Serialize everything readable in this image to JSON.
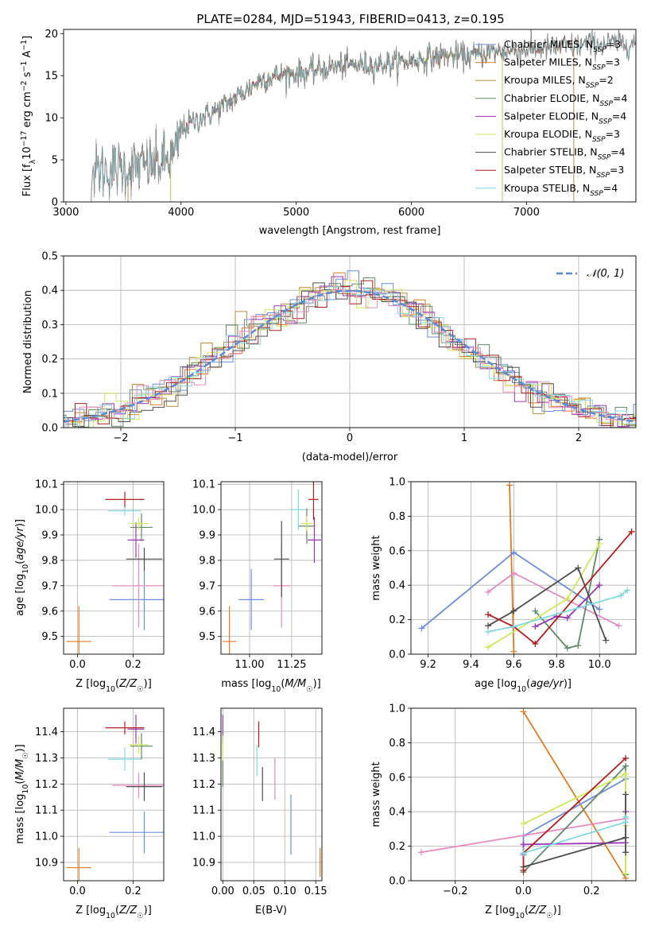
{
  "figure": {
    "title": "PLATE=0284, MJD=51943, FIBERID=0413, z=0.195"
  },
  "colors": {
    "c_chabrier_miles": "#6a8fdc",
    "c_salpeter_miles": "#e07a22",
    "c_kroupa_miles": "#b68d3a",
    "c_chabrier_elodie": "#5e8a66",
    "c_salpeter_elodie": "#9a35b5",
    "c_kroupa_elodie": "#cfe85a",
    "c_chabrier_stelib": "#4d4d4d",
    "c_salpeter_stelib": "#b01e1e",
    "c_kroupa_stelib": "#7fd9e0",
    "c_pink": "#e68bbf",
    "grid": "#b0b0b0"
  },
  "chart_data": [
    {
      "id": "spectrum",
      "type": "line",
      "title": "PLATE=0284, MJD=51943, FIBERID=0413, z=0.195",
      "xlabel": "wavelength [Angstrom, rest frame]",
      "ylabel": "Flux [f_λ10^-17 erg cm^-2 s^-1 A^-1]",
      "xlim": [
        2980,
        7950
      ],
      "ylim": [
        0,
        20.5
      ],
      "xticks": [
        "3000",
        "4000",
        "5000",
        "6000",
        "7000"
      ],
      "yticks": [
        "0",
        "5",
        "10",
        "15",
        "20"
      ],
      "grid": false,
      "legend_position": "right",
      "series": [
        {
          "name": "Chabrier MILES, N_SSP=3",
          "x_range": [
            3540,
            7410
          ]
        },
        {
          "name": "Salpeter MILES, N_SSP=3",
          "x_range": [
            3540,
            7410
          ]
        },
        {
          "name": "Kroupa MILES, N_SSP=2",
          "x_range": [
            3540,
            7410
          ]
        },
        {
          "name": "Chabrier ELODIE, N_SSP=4",
          "x_range": [
            3910,
            6790
          ]
        },
        {
          "name": "Salpeter ELODIE, N_SSP=4",
          "x_range": [
            3910,
            6790
          ]
        },
        {
          "name": "Kroupa ELODIE, N_SSP=3",
          "x_range": [
            3910,
            6790
          ]
        },
        {
          "name": "Chabrier STELIB, N_SSP=4",
          "x_range": [
            3220,
            7950
          ]
        },
        {
          "name": "Salpeter STELIB, N_SSP=3",
          "x_range": [
            3220,
            7950
          ]
        },
        {
          "name": "Kroupa STELIB, N_SSP=4",
          "x_range": [
            3220,
            7950
          ]
        }
      ],
      "continuum": {
        "x": [
          3220,
          3400,
          3550,
          3700,
          3850,
          3950,
          4000,
          4100,
          4300,
          4500,
          4700,
          4900,
          5100,
          5300,
          5500,
          5700,
          5900,
          6100,
          6300,
          6500,
          6700,
          6900,
          7100,
          7300,
          7500,
          7700,
          7950
        ],
        "y": [
          3.6,
          3.9,
          4.1,
          4.3,
          4.7,
          5.5,
          8.6,
          9.5,
          10.8,
          12.6,
          14.6,
          15.2,
          15.4,
          16.0,
          16.3,
          16.3,
          16.6,
          17.0,
          17.4,
          17.3,
          17.8,
          18.0,
          18.2,
          18.4,
          18.7,
          18.8,
          18.9
        ]
      }
    },
    {
      "id": "residuals",
      "type": "histogram",
      "xlabel": "(data-model)/error",
      "ylabel": "Normed distribution",
      "xlim": [
        -2.5,
        2.5
      ],
      "ylim": [
        0,
        0.5
      ],
      "xticks": [
        "−2",
        "−1",
        "0",
        "1",
        "2"
      ],
      "yticks": [
        "0.0",
        "0.1",
        "0.2",
        "0.3",
        "0.4",
        "0.5"
      ],
      "grid": true,
      "legend_position": "top-right",
      "reference_curve": {
        "name": "𝒩(0, 1)",
        "style": "dashed"
      },
      "bin_width": 0.1
    },
    {
      "id": "age_vs_Z",
      "type": "scatter",
      "xlabel": "Z [log10(Z/Z☉)]",
      "ylabel": "age  [log10(age/yr)]",
      "xlim": [
        -0.05,
        0.31
      ],
      "ylim": [
        9.43,
        10.11
      ],
      "xticks": [
        "0.0",
        "0.2"
      ],
      "yticks": [
        "9.5",
        "9.6",
        "9.7",
        "9.8",
        "9.9",
        "10.0",
        "10.1"
      ],
      "grid": true,
      "points": [
        {
          "color": "c_salpeter_miles",
          "x": 0.005,
          "y": 9.48,
          "xerr": 0.045,
          "yerr": 0.14
        },
        {
          "color": "c_chabrier_miles",
          "x": 0.24,
          "y": 9.645,
          "xerr": 0.125,
          "yerr": 0.12
        },
        {
          "color": "c_pink",
          "x": 0.22,
          "y": 9.7,
          "xerr": 0.095,
          "yerr": 0.165
        },
        {
          "color": "c_chabrier_stelib",
          "x": 0.24,
          "y": 9.805,
          "xerr": 0.065,
          "yerr": 0.045
        },
        {
          "color": "c_salpeter_elodie",
          "x": 0.21,
          "y": 9.88,
          "xerr": 0.03,
          "yerr": 0.07
        },
        {
          "color": "c_chabrier_elodie",
          "x": 0.23,
          "y": 9.93,
          "xerr": 0.04,
          "yerr": 0.055
        },
        {
          "color": "c_kroupa_elodie",
          "x": 0.22,
          "y": 9.945,
          "xerr": 0.035,
          "yerr": 0.025
        },
        {
          "color": "c_kroupa_stelib",
          "x": 0.17,
          "y": 9.995,
          "xerr": 0.06,
          "yerr": 0.02
        },
        {
          "color": "c_salpeter_stelib",
          "x": 0.17,
          "y": 10.04,
          "xerr": 0.07,
          "yerr": 0.03
        }
      ]
    },
    {
      "id": "age_vs_mass",
      "type": "scatter",
      "xlabel": "mass [log10(M/M☉)]",
      "ylabel": "",
      "xlim": [
        10.83,
        11.43
      ],
      "ylim": [
        9.43,
        10.11
      ],
      "xticks": [
        "11.00",
        "11.25"
      ],
      "yticks": [
        "9.5",
        "9.6",
        "9.7",
        "9.8",
        "9.9",
        "10.0",
        "10.1"
      ],
      "grid": true,
      "points": [
        {
          "color": "c_salpeter_miles",
          "x": 10.88,
          "y": 9.48,
          "xerr": 0.04,
          "yerr": 0.14
        },
        {
          "color": "c_chabrier_miles",
          "x": 11.01,
          "y": 9.645,
          "xerr": 0.075,
          "yerr": 0.12
        },
        {
          "color": "c_pink",
          "x": 11.19,
          "y": 9.7,
          "xerr": 0.05,
          "yerr": 0.165
        },
        {
          "color": "c_chabrier_stelib",
          "x": 11.19,
          "y": 9.805,
          "xerr": 0.045,
          "yerr": 0.15
        },
        {
          "color": "c_salpeter_elodie",
          "x": 11.385,
          "y": 9.88,
          "xerr": 0.04,
          "yerr": 0.09
        },
        {
          "color": "c_chabrier_elodie",
          "x": 11.34,
          "y": 9.935,
          "xerr": 0.05,
          "yerr": 0.07
        },
        {
          "color": "c_kroupa_elodie",
          "x": 11.34,
          "y": 9.945,
          "xerr": 0.035,
          "yerr": 0.03
        },
        {
          "color": "c_kroupa_stelib",
          "x": 11.29,
          "y": 10.0,
          "xerr": 0.045,
          "yerr": 0.08
        },
        {
          "color": "c_salpeter_stelib",
          "x": 11.38,
          "y": 10.04,
          "xerr": 0.03,
          "yerr": 0.08
        }
      ]
    },
    {
      "id": "weight_vs_age",
      "type": "line",
      "xlabel": "age  [log10(age/yr)]",
      "ylabel": "mass weight",
      "xlim": [
        9.12,
        10.17
      ],
      "ylim": [
        0,
        1.0
      ],
      "xticks": [
        "9.2",
        "9.4",
        "9.6",
        "9.8",
        "10.0"
      ],
      "yticks": [
        "0.0",
        "0.2",
        "0.4",
        "0.6",
        "0.8",
        "1.0"
      ],
      "grid": true,
      "series": [
        {
          "color": "c_salpeter_miles",
          "x": [
            9.58,
            9.6
          ],
          "y": [
            0.98,
            0.015
          ]
        },
        {
          "color": "c_chabrier_miles",
          "x": [
            9.17,
            9.6,
            10.0
          ],
          "y": [
            0.15,
            0.59,
            0.26
          ]
        },
        {
          "color": "c_pink",
          "x": [
            9.48,
            9.6,
            10.09
          ],
          "y": [
            0.36,
            0.47,
            0.165
          ]
        },
        {
          "color": "c_chabrier_elodie",
          "x": [
            9.7,
            9.85,
            9.9,
            10.0
          ],
          "y": [
            0.25,
            0.035,
            0.05,
            0.665
          ]
        },
        {
          "color": "c_salpeter_elodie",
          "x": [
            9.7,
            9.8,
            9.85,
            10.0
          ],
          "y": [
            0.16,
            0.22,
            0.21,
            0.4
          ]
        },
        {
          "color": "c_kroupa_elodie",
          "x": [
            9.48,
            9.85,
            10.0
          ],
          "y": [
            0.04,
            0.32,
            0.64
          ]
        },
        {
          "color": "c_chabrier_stelib",
          "x": [
            9.48,
            9.6,
            9.9,
            10.03
          ],
          "y": [
            0.165,
            0.25,
            0.5,
            0.08
          ]
        },
        {
          "color": "c_salpeter_stelib",
          "x": [
            9.48,
            9.6,
            9.7,
            10.15
          ],
          "y": [
            0.23,
            0.16,
            0.06,
            0.71
          ]
        },
        {
          "color": "c_kroupa_stelib",
          "x": [
            9.48,
            9.6,
            10.1,
            10.13
          ],
          "y": [
            0.13,
            0.16,
            0.34,
            0.37
          ]
        }
      ]
    },
    {
      "id": "mass_vs_Z",
      "type": "scatter",
      "xlabel": "Z [log10(Z/Z☉)]",
      "ylabel": "mass [log10(M/M☉)]",
      "xlim": [
        -0.05,
        0.31
      ],
      "ylim": [
        10.83,
        11.49
      ],
      "xticks": [
        "0.0",
        "0.2"
      ],
      "yticks": [
        "10.9",
        "11.0",
        "11.1",
        "11.2",
        "11.3",
        "11.4"
      ],
      "grid": true,
      "points": [
        {
          "color": "c_salpeter_miles",
          "x": 0.005,
          "y": 10.88,
          "xerr": 0.045,
          "yerr": 0.075
        },
        {
          "color": "c_chabrier_miles",
          "x": 0.24,
          "y": 11.015,
          "xerr": 0.125,
          "yerr": 0.08
        },
        {
          "color": "c_pink",
          "x": 0.22,
          "y": 11.195,
          "xerr": 0.095,
          "yerr": 0.05
        },
        {
          "color": "c_chabrier_stelib",
          "x": 0.24,
          "y": 11.19,
          "xerr": 0.065,
          "yerr": 0.055
        },
        {
          "color": "c_kroupa_stelib",
          "x": 0.17,
          "y": 11.295,
          "xerr": 0.06,
          "yerr": 0.045
        },
        {
          "color": "c_chabrier_elodie",
          "x": 0.23,
          "y": 11.345,
          "xerr": 0.04,
          "yerr": 0.05
        },
        {
          "color": "c_kroupa_elodie",
          "x": 0.22,
          "y": 11.35,
          "xerr": 0.035,
          "yerr": 0.035
        },
        {
          "color": "c_salpeter_elodie",
          "x": 0.21,
          "y": 11.41,
          "xerr": 0.03,
          "yerr": 0.055
        },
        {
          "color": "c_salpeter_stelib",
          "x": 0.17,
          "y": 11.415,
          "xerr": 0.07,
          "yerr": 0.025
        }
      ]
    },
    {
      "id": "mass_vs_ebv",
      "type": "scatter",
      "xlabel": "E(B-V)",
      "ylabel": "",
      "xlim": [
        -0.003,
        0.16
      ],
      "ylim": [
        10.83,
        11.49
      ],
      "xticks": [
        "0.00",
        "0.05",
        "0.10",
        "0.15"
      ],
      "yticks": [
        "10.9",
        "11.0",
        "11.1",
        "11.2",
        "11.3",
        "11.4"
      ],
      "grid": true,
      "points": [
        {
          "color": "c_salpeter_elodie",
          "x": 0.0,
          "y": 11.41,
          "yerr": 0.055
        },
        {
          "color": "c_kroupa_elodie",
          "x": 0.0,
          "y": 11.31,
          "yerr": 0.075
        },
        {
          "color": "c_chabrier_elodie",
          "x": 0.0,
          "y": 11.24,
          "yerr": 0.05
        },
        {
          "color": "c_salpeter_stelib",
          "x": 0.058,
          "y": 11.39,
          "yerr": 0.05
        },
        {
          "color": "c_kroupa_stelib",
          "x": 0.055,
          "y": 11.29,
          "yerr": 0.06
        },
        {
          "color": "c_chabrier_stelib",
          "x": 0.064,
          "y": 11.2,
          "yerr": 0.065
        },
        {
          "color": "c_pink",
          "x": 0.084,
          "y": 11.22,
          "yerr": 0.08
        },
        {
          "color": "c_chabrier_miles",
          "x": 0.11,
          "y": 11.045,
          "yerr": 0.115
        },
        {
          "color": "c_salpeter_miles",
          "x": 0.157,
          "y": 10.9,
          "yerr": 0.055
        }
      ]
    },
    {
      "id": "weight_vs_Z",
      "type": "line",
      "xlabel": "Z [log10(Z/Z☉)]",
      "ylabel": "mass weight",
      "xlim": [
        -0.33,
        0.33
      ],
      "ylim": [
        0,
        1.0
      ],
      "xticks": [
        "−0.2",
        "0.0",
        "0.2"
      ],
      "yticks": [
        "0.0",
        "0.2",
        "0.4",
        "0.6",
        "0.8",
        "1.0"
      ],
      "grid": true,
      "series": [
        {
          "color": "c_salpeter_miles",
          "x": [
            0.0,
            0.3
          ],
          "y": [
            0.98,
            0.015
          ]
        },
        {
          "color": "c_chabrier_miles",
          "x": [
            0.0,
            0.0,
            0.3
          ],
          "y": [
            0.15,
            0.26,
            0.59
          ]
        },
        {
          "color": "c_pink",
          "x": [
            -0.3,
            0.3
          ],
          "y": [
            0.165,
            0.36
          ]
        },
        {
          "color": "c_chabrier_elodie",
          "x": [
            0.0,
            0.3,
            0.3,
            0.3
          ],
          "y": [
            0.05,
            0.665,
            0.035,
            0.25
          ]
        },
        {
          "color": "c_salpeter_elodie",
          "x": [
            0.0,
            0.3,
            0.3
          ],
          "y": [
            0.21,
            0.22,
            0.4
          ]
        },
        {
          "color": "c_kroupa_elodie",
          "x": [
            0.0,
            0.3,
            0.3,
            0.3
          ],
          "y": [
            0.33,
            0.62,
            0.32,
            0.04
          ]
        },
        {
          "color": "c_chabrier_stelib",
          "x": [
            0.0,
            0.3,
            0.3,
            0.3
          ],
          "y": [
            0.08,
            0.25,
            0.5,
            0.165
          ]
        },
        {
          "color": "c_salpeter_stelib",
          "x": [
            0.0,
            0.0,
            0.3
          ],
          "y": [
            0.06,
            0.16,
            0.71
          ]
        },
        {
          "color": "c_kroupa_stelib",
          "x": [
            0.0,
            0.3,
            0.3
          ],
          "y": [
            0.16,
            0.34,
            0.37
          ]
        }
      ]
    }
  ]
}
